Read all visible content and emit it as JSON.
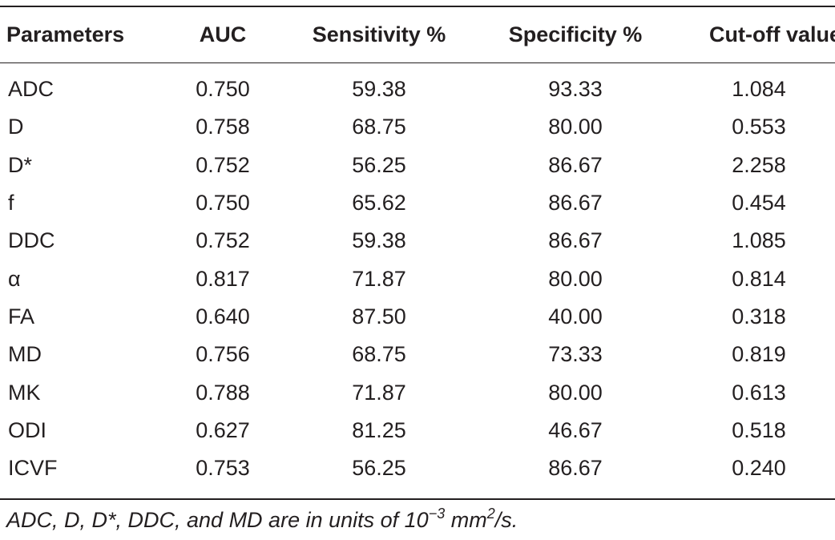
{
  "table": {
    "headers": [
      "Parameters",
      "AUC",
      "Sensitivity %",
      "Specificity %",
      "Cut-off value"
    ],
    "rows": [
      [
        "ADC",
        "0.750",
        "59.38",
        "93.33",
        "1.084"
      ],
      [
        "D",
        "0.758",
        "68.75",
        "80.00",
        "0.553"
      ],
      [
        "D*",
        "0.752",
        "56.25",
        "86.67",
        "2.258"
      ],
      [
        "f",
        "0.750",
        "65.62",
        "86.67",
        "0.454"
      ],
      [
        "DDC",
        "0.752",
        "59.38",
        "86.67",
        "1.085"
      ],
      [
        "α",
        "0.817",
        "71.87",
        "80.00",
        "0.814"
      ],
      [
        "FA",
        "0.640",
        "87.50",
        "40.00",
        "0.318"
      ],
      [
        "MD",
        "0.756",
        "68.75",
        "73.33",
        "0.819"
      ],
      [
        "MK",
        "0.788",
        "71.87",
        "80.00",
        "0.613"
      ],
      [
        "ODI",
        "0.627",
        "81.25",
        "46.67",
        "0.518"
      ],
      [
        "ICVF",
        "0.753",
        "56.25",
        "86.67",
        "0.240"
      ]
    ]
  },
  "footnote": {
    "text_before": "ADC, D, D*, DDC, and MD are in units of 10",
    "exp1": "−3",
    "text_mid": " mm",
    "exp2": "2",
    "text_after": "/s."
  }
}
